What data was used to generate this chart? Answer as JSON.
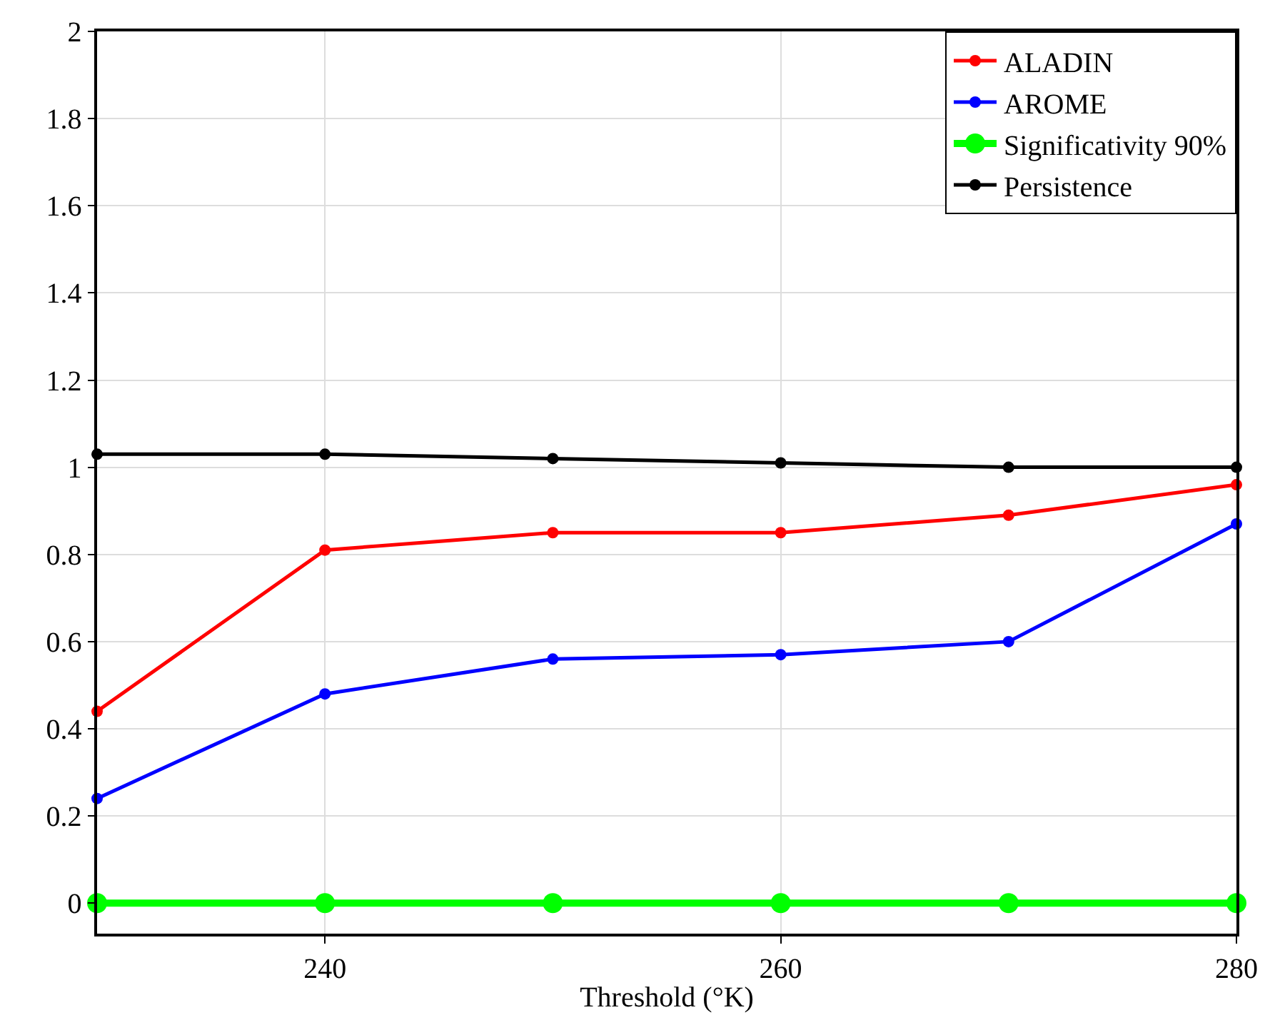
{
  "chart_data": {
    "type": "line",
    "xlabel": "Threshold (°K)",
    "x": [
      230,
      240,
      250,
      260,
      270,
      280
    ],
    "series": [
      {
        "name": "ALADIN",
        "color": "#ff0000",
        "values": [
          0.44,
          0.81,
          0.85,
          0.85,
          0.89,
          0.96
        ]
      },
      {
        "name": "AROME",
        "color": "#0000ff",
        "values": [
          0.24,
          0.48,
          0.56,
          0.57,
          0.6,
          0.87
        ]
      },
      {
        "name": "Significativity 90%",
        "color": "#00ff00",
        "values": [
          0,
          0,
          0,
          0,
          0,
          0
        ]
      },
      {
        "name": "Persistence",
        "color": "#000000",
        "values": [
          1.03,
          1.03,
          1.02,
          1.01,
          1.0,
          1.0
        ]
      }
    ],
    "xlim": [
      230,
      280
    ],
    "xticks": [
      240,
      260,
      280
    ],
    "ylim": [
      -0.07,
      2
    ],
    "yticks": [
      0,
      0.2,
      0.4,
      0.6,
      0.8,
      1,
      1.2,
      1.4,
      1.6,
      1.8,
      2
    ],
    "grid": true,
    "legend": "top right",
    "marker": "circle",
    "line_style": "solid"
  }
}
